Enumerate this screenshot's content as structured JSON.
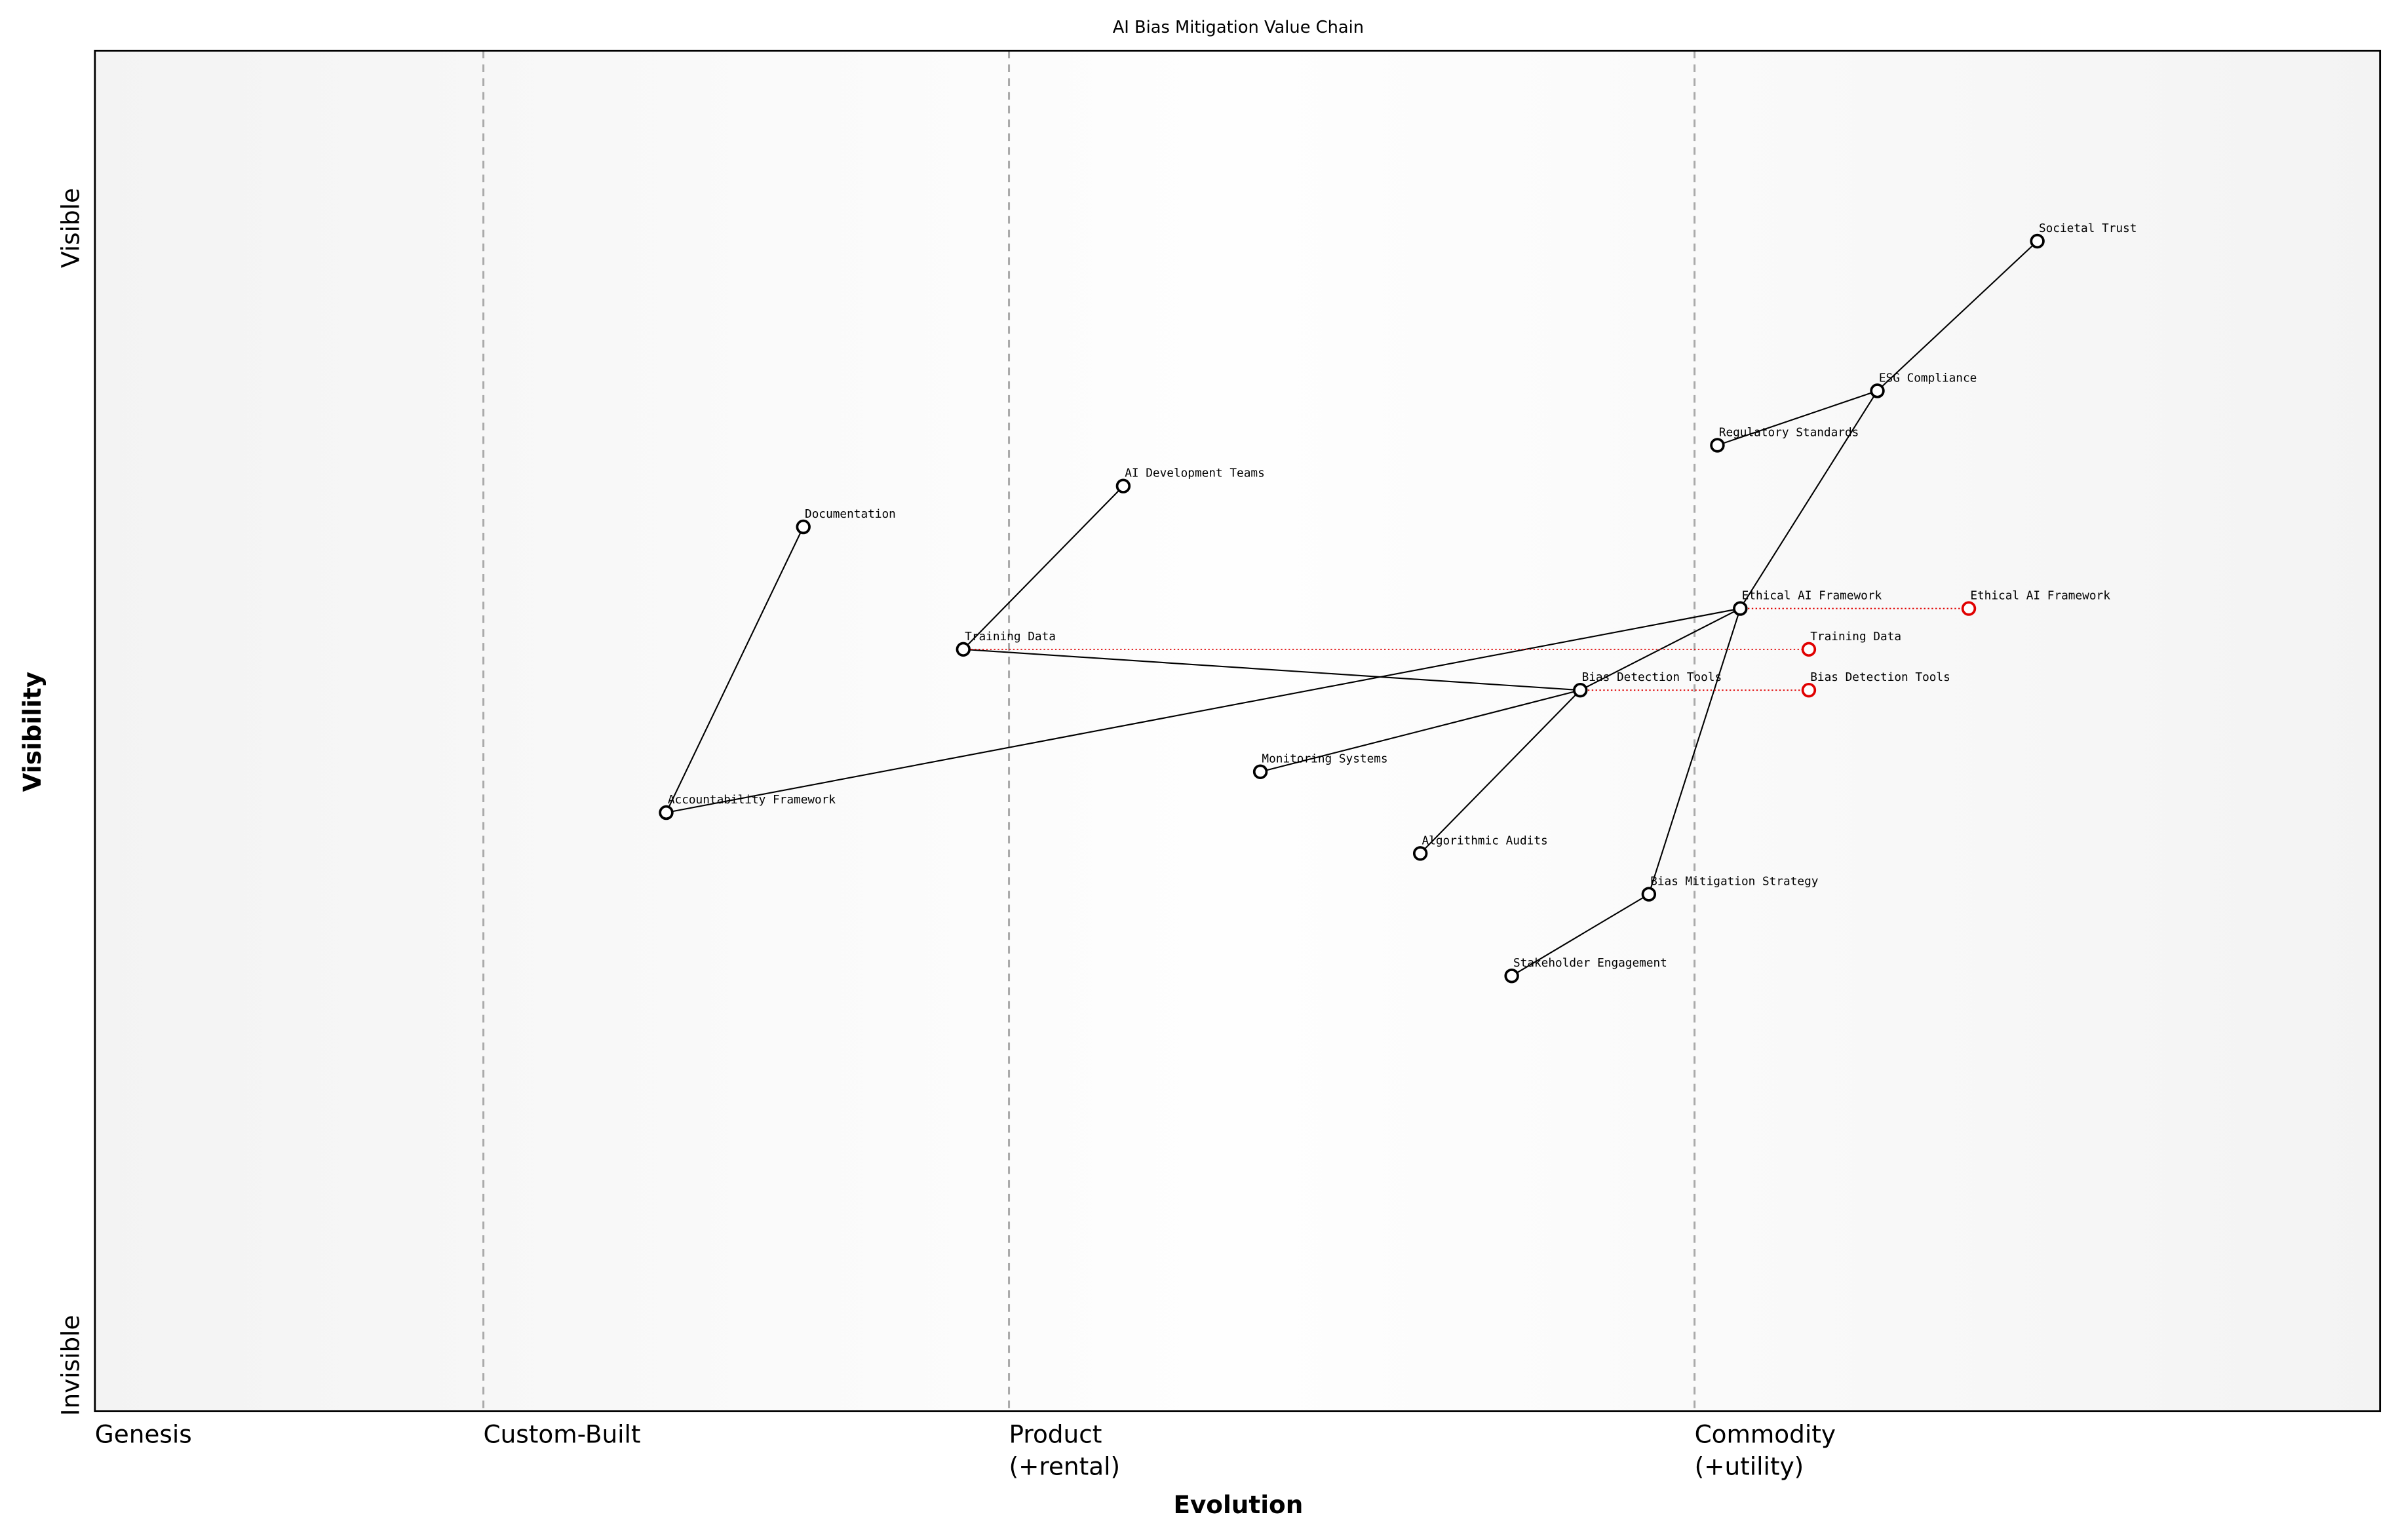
{
  "chart_data": {
    "type": "wardley",
    "title": "AI Bias Mitigation Value Chain",
    "x_label": "Evolution",
    "y_label": "Visibility",
    "y_top_label": "Visible",
    "y_bottom_label": "Invisible",
    "xlim": [
      0,
      1
    ],
    "ylim": [
      0,
      1
    ],
    "stages": [
      {
        "value": 0,
        "label": [
          "Genesis"
        ]
      },
      {
        "value": 0.17,
        "label": [
          "Custom-Built"
        ]
      },
      {
        "value": 0.4,
        "label": [
          "Product",
          "(+rental)"
        ]
      },
      {
        "value": 0.7,
        "label": [
          "Commodity",
          "(+utility)"
        ]
      }
    ],
    "component_color": "#000000",
    "evolved_color": "#e00000",
    "components": [
      {
        "name": "Societal Trust",
        "evolution": 0.85,
        "visibility": 0.86
      },
      {
        "name": "ESG Compliance",
        "evolution": 0.78,
        "visibility": 0.75
      },
      {
        "name": "Regulatory Standards",
        "evolution": 0.71,
        "visibility": 0.71
      },
      {
        "name": "AI Development Teams",
        "evolution": 0.45,
        "visibility": 0.68
      },
      {
        "name": "Documentation",
        "evolution": 0.31,
        "visibility": 0.65
      },
      {
        "name": "Ethical AI Framework",
        "evolution": 0.72,
        "visibility": 0.59
      },
      {
        "name": "Training Data",
        "evolution": 0.38,
        "visibility": 0.56
      },
      {
        "name": "Bias Detection Tools",
        "evolution": 0.65,
        "visibility": 0.53
      },
      {
        "name": "Monitoring Systems",
        "evolution": 0.51,
        "visibility": 0.47
      },
      {
        "name": "Accountability Framework",
        "evolution": 0.25,
        "visibility": 0.44
      },
      {
        "name": "Algorithmic Audits",
        "evolution": 0.58,
        "visibility": 0.41
      },
      {
        "name": "Bias Mitigation Strategy",
        "evolution": 0.68,
        "visibility": 0.38
      },
      {
        "name": "Stakeholder Engagement",
        "evolution": 0.62,
        "visibility": 0.32
      }
    ],
    "links": [
      {
        "from": "Societal Trust",
        "to": "ESG Compliance"
      },
      {
        "from": "ESG Compliance",
        "to": "Regulatory Standards"
      },
      {
        "from": "ESG Compliance",
        "to": "Ethical AI Framework"
      },
      {
        "from": "Ethical AI Framework",
        "to": "Bias Mitigation Strategy"
      },
      {
        "from": "Ethical AI Framework",
        "to": "Accountability Framework"
      },
      {
        "from": "Ethical AI Framework",
        "to": "Bias Detection Tools"
      },
      {
        "from": "Bias Detection Tools",
        "to": "Training Data"
      },
      {
        "from": "Bias Detection Tools",
        "to": "Monitoring Systems"
      },
      {
        "from": "Bias Detection Tools",
        "to": "Algorithmic Audits"
      },
      {
        "from": "Training Data",
        "to": "AI Development Teams"
      },
      {
        "from": "Documentation",
        "to": "Accountability Framework"
      },
      {
        "from": "Bias Mitigation Strategy",
        "to": "Stakeholder Engagement"
      }
    ],
    "evolved": [
      {
        "name": "Ethical AI Framework",
        "evolution": 0.82
      },
      {
        "name": "Training Data",
        "evolution": 0.75
      },
      {
        "name": "Bias Detection Tools",
        "evolution": 0.75
      }
    ]
  }
}
